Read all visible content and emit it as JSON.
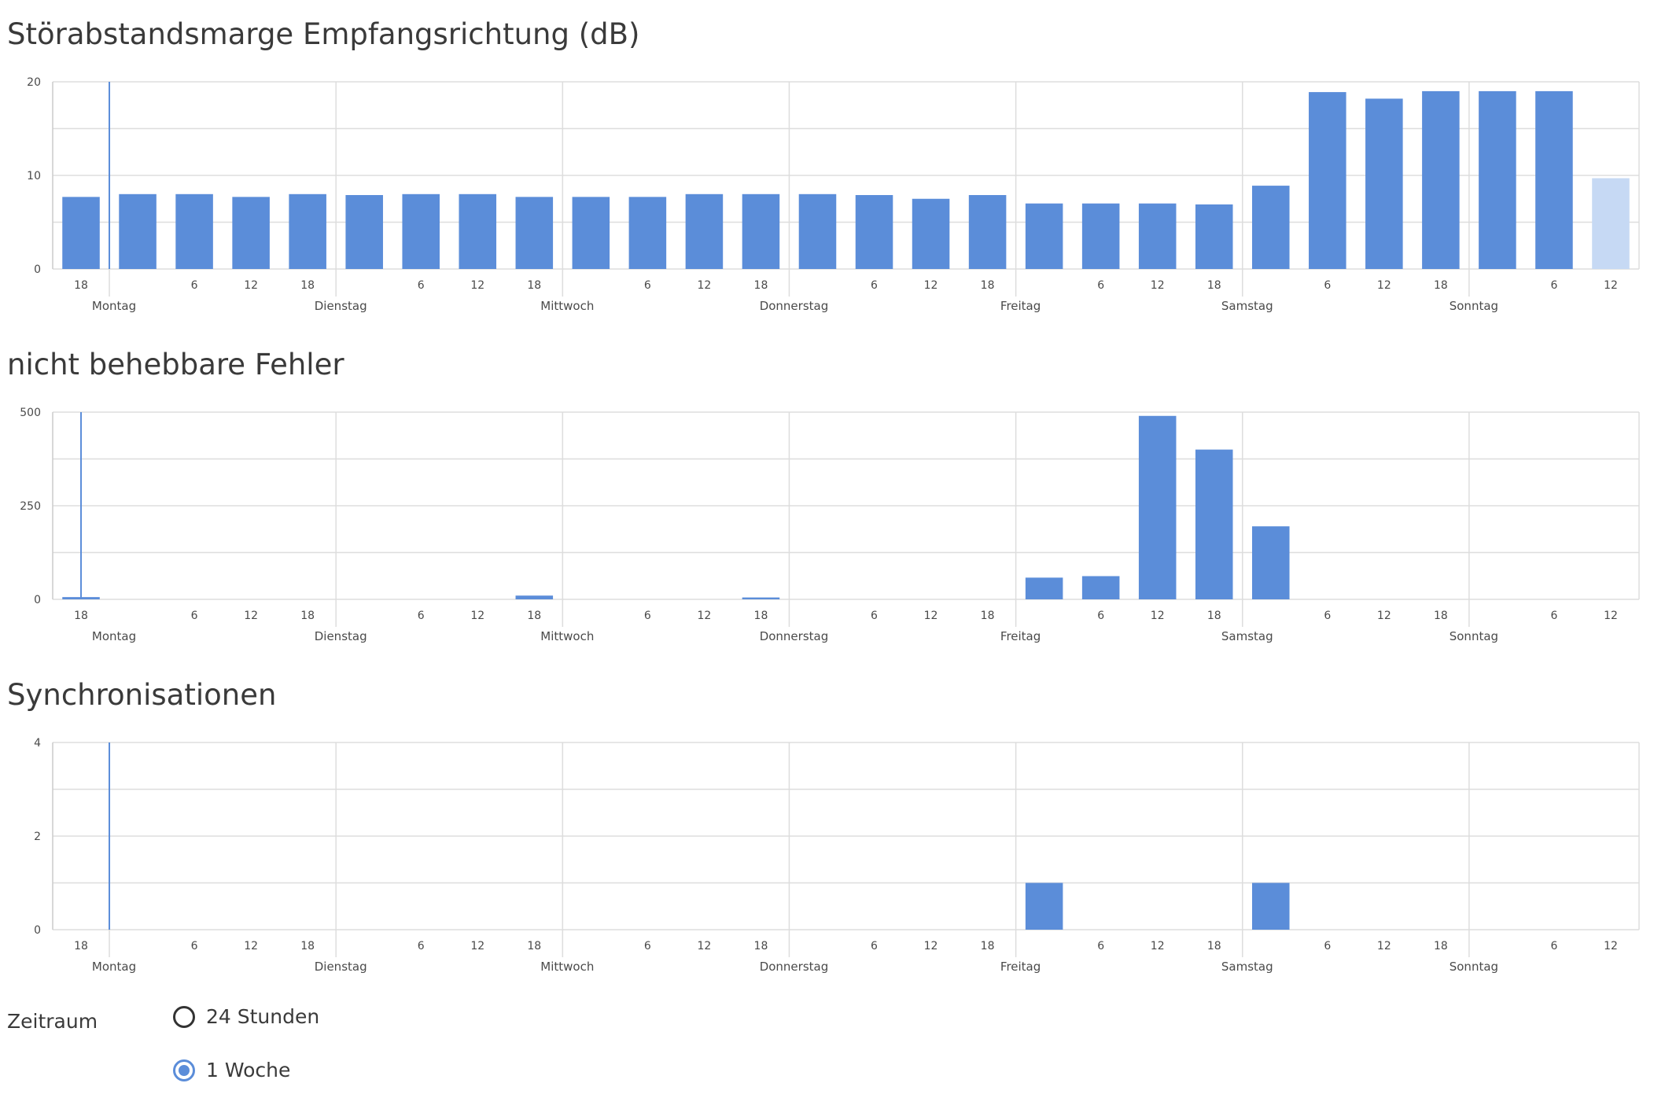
{
  "charts": [
    {
      "title": "Störabstandsmarge Empfangsrichtung (dB)",
      "type": "bar",
      "ylim": [
        0,
        20
      ],
      "yticks": [
        "20",
        "10",
        "0"
      ],
      "bar_color": "#5b8dd9",
      "partial_bar_color": "#c6d9f4",
      "marker_slot": 1.0,
      "x_ticks": [
        {
          "slot": 0,
          "label": "18"
        },
        {
          "slot": 2,
          "label": "6"
        },
        {
          "slot": 3,
          "label": "12"
        },
        {
          "slot": 4,
          "label": "18"
        },
        {
          "slot": 6,
          "label": "6"
        },
        {
          "slot": 7,
          "label": "12"
        },
        {
          "slot": 8,
          "label": "18"
        },
        {
          "slot": 10,
          "label": "6"
        },
        {
          "slot": 11,
          "label": "12"
        },
        {
          "slot": 12,
          "label": "18"
        },
        {
          "slot": 14,
          "label": "6"
        },
        {
          "slot": 15,
          "label": "12"
        },
        {
          "slot": 16,
          "label": "18"
        },
        {
          "slot": 18,
          "label": "6"
        },
        {
          "slot": 19,
          "label": "12"
        },
        {
          "slot": 20,
          "label": "18"
        },
        {
          "slot": 22,
          "label": "6"
        },
        {
          "slot": 23,
          "label": "12"
        },
        {
          "slot": 24,
          "label": "18"
        },
        {
          "slot": 26,
          "label": "6"
        },
        {
          "slot": 27,
          "label": "12"
        }
      ],
      "day_boundaries": [
        1,
        5,
        9,
        13,
        17,
        21,
        25
      ],
      "day_labels": [
        {
          "slot": 1,
          "label": "Montag"
        },
        {
          "slot": 5,
          "label": "Dienstag"
        },
        {
          "slot": 9,
          "label": "Mittwoch"
        },
        {
          "slot": 13,
          "label": "Donnerstag"
        },
        {
          "slot": 17,
          "label": "Freitag"
        },
        {
          "slot": 21,
          "label": "Samstag"
        },
        {
          "slot": 25,
          "label": "Sonntag"
        }
      ],
      "chart_data": {
        "type": "bar",
        "ylim": [
          0,
          20
        ],
        "values": [
          7.7,
          8.0,
          8.0,
          7.7,
          8.0,
          7.9,
          8.0,
          8.0,
          7.7,
          7.7,
          7.7,
          8.0,
          8.0,
          8.0,
          7.9,
          7.5,
          7.9,
          7.0,
          7.0,
          7.0,
          6.9,
          8.9,
          18.9,
          18.2,
          19.0,
          19.0,
          19.0,
          9.7
        ],
        "partial_last": true
      }
    },
    {
      "title": "nicht behebbare Fehler",
      "type": "bar",
      "ylim": [
        0,
        500
      ],
      "yticks": [
        "500",
        "250",
        "0"
      ],
      "bar_color": "#5b8dd9",
      "partial_bar_color": "#c6d9f4",
      "marker_slot": 0.5,
      "x_ticks": [
        {
          "slot": 0,
          "label": "18"
        },
        {
          "slot": 2,
          "label": "6"
        },
        {
          "slot": 3,
          "label": "12"
        },
        {
          "slot": 4,
          "label": "18"
        },
        {
          "slot": 6,
          "label": "6"
        },
        {
          "slot": 7,
          "label": "12"
        },
        {
          "slot": 8,
          "label": "18"
        },
        {
          "slot": 10,
          "label": "6"
        },
        {
          "slot": 11,
          "label": "12"
        },
        {
          "slot": 12,
          "label": "18"
        },
        {
          "slot": 14,
          "label": "6"
        },
        {
          "slot": 15,
          "label": "12"
        },
        {
          "slot": 16,
          "label": "18"
        },
        {
          "slot": 18,
          "label": "6"
        },
        {
          "slot": 19,
          "label": "12"
        },
        {
          "slot": 20,
          "label": "18"
        },
        {
          "slot": 22,
          "label": "6"
        },
        {
          "slot": 23,
          "label": "12"
        },
        {
          "slot": 24,
          "label": "18"
        },
        {
          "slot": 26,
          "label": "6"
        },
        {
          "slot": 27,
          "label": "12"
        }
      ],
      "day_boundaries": [
        5,
        9,
        13,
        17,
        21,
        25
      ],
      "day_labels": [
        {
          "slot": 1,
          "label": "Montag"
        },
        {
          "slot": 5,
          "label": "Dienstag"
        },
        {
          "slot": 9,
          "label": "Mittwoch"
        },
        {
          "slot": 13,
          "label": "Donnerstag"
        },
        {
          "slot": 17,
          "label": "Freitag"
        },
        {
          "slot": 21,
          "label": "Samstag"
        },
        {
          "slot": 25,
          "label": "Sonntag"
        }
      ],
      "chart_data": {
        "type": "bar",
        "ylim": [
          0,
          500
        ],
        "values": [
          6,
          0,
          0,
          0,
          0,
          0,
          0,
          0,
          10,
          0,
          0,
          0,
          5,
          0,
          0,
          0,
          0,
          58,
          62,
          490,
          400,
          195,
          0,
          0,
          0,
          0,
          0,
          0
        ],
        "partial_last": false
      }
    },
    {
      "title": "Synchronisationen",
      "type": "bar",
      "ylim": [
        0,
        4
      ],
      "yticks": [
        "4",
        "2",
        "0"
      ],
      "bar_color": "#5b8dd9",
      "partial_bar_color": "#c6d9f4",
      "marker_slot": 1.0,
      "x_ticks": [
        {
          "slot": 0,
          "label": "18"
        },
        {
          "slot": 2,
          "label": "6"
        },
        {
          "slot": 3,
          "label": "12"
        },
        {
          "slot": 4,
          "label": "18"
        },
        {
          "slot": 6,
          "label": "6"
        },
        {
          "slot": 7,
          "label": "12"
        },
        {
          "slot": 8,
          "label": "18"
        },
        {
          "slot": 10,
          "label": "6"
        },
        {
          "slot": 11,
          "label": "12"
        },
        {
          "slot": 12,
          "label": "18"
        },
        {
          "slot": 14,
          "label": "6"
        },
        {
          "slot": 15,
          "label": "12"
        },
        {
          "slot": 16,
          "label": "18"
        },
        {
          "slot": 18,
          "label": "6"
        },
        {
          "slot": 19,
          "label": "12"
        },
        {
          "slot": 20,
          "label": "18"
        },
        {
          "slot": 22,
          "label": "6"
        },
        {
          "slot": 23,
          "label": "12"
        },
        {
          "slot": 24,
          "label": "18"
        },
        {
          "slot": 26,
          "label": "6"
        },
        {
          "slot": 27,
          "label": "12"
        }
      ],
      "day_boundaries": [
        1,
        5,
        9,
        13,
        17,
        21,
        25
      ],
      "day_labels": [
        {
          "slot": 1,
          "label": "Montag"
        },
        {
          "slot": 5,
          "label": "Dienstag"
        },
        {
          "slot": 9,
          "label": "Mittwoch"
        },
        {
          "slot": 13,
          "label": "Donnerstag"
        },
        {
          "slot": 17,
          "label": "Freitag"
        },
        {
          "slot": 21,
          "label": "Samstag"
        },
        {
          "slot": 25,
          "label": "Sonntag"
        }
      ],
      "chart_data": {
        "type": "bar",
        "ylim": [
          0,
          4
        ],
        "values": [
          0,
          0,
          0,
          0,
          0,
          0,
          0,
          0,
          0,
          0,
          0,
          0,
          0,
          0,
          0,
          0,
          0,
          1,
          0,
          0,
          0,
          1,
          0,
          0,
          0,
          0,
          0,
          0
        ],
        "partial_last": false
      }
    }
  ],
  "period": {
    "label": "Zeitraum",
    "options": [
      {
        "label": "24 Stunden",
        "checked": false
      },
      {
        "label": "1 Woche",
        "checked": true
      }
    ]
  }
}
